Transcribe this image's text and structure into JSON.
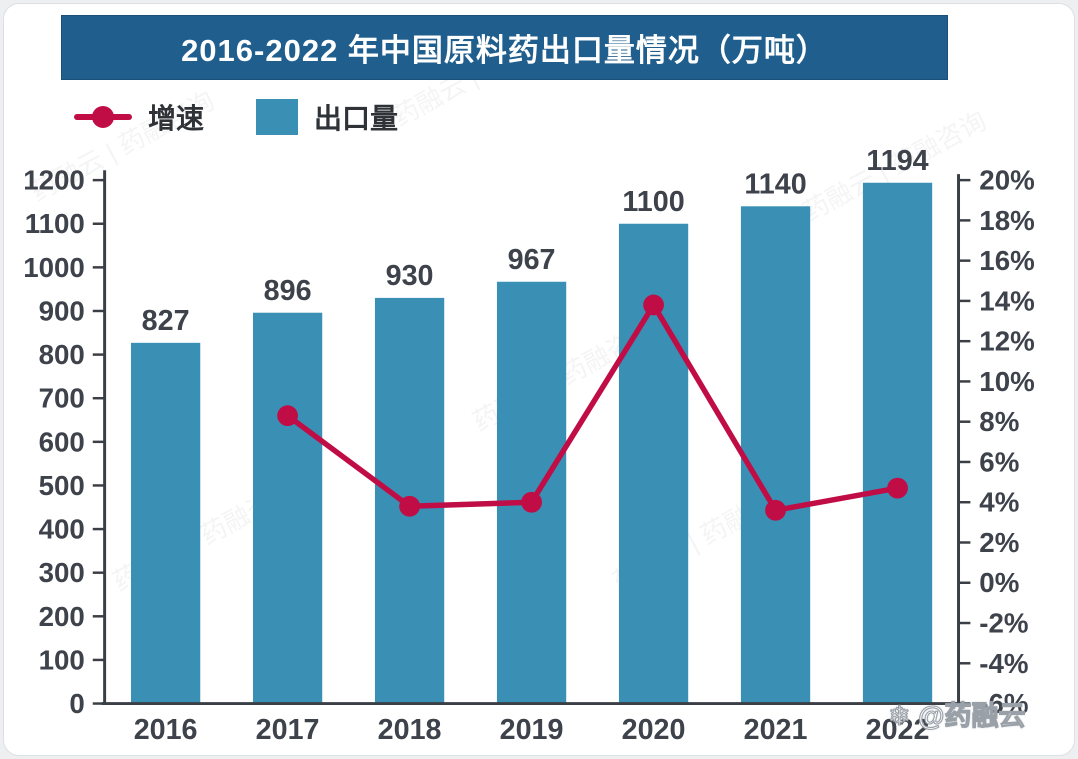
{
  "page": {
    "corner_watermark": {
      "icon": "❄",
      "text": "@药融云"
    },
    "diagonal_watermark": "药融云 | 药融咨询"
  },
  "title": {
    "text": "2016-2022 年中国原料药出口量情况（万吨）"
  },
  "legend": {
    "items": [
      {
        "label": "增速",
        "marker": "line-dot",
        "color": "#c00d45"
      },
      {
        "label": "出口量",
        "marker": "square",
        "color": "#3a8fb5"
      }
    ]
  },
  "chart_data": {
    "type": "combo-bar-line",
    "title": "2016-2022 年中国原料药出口量情况（万吨）",
    "unit": "万吨",
    "categories": [
      "2016",
      "2017",
      "2018",
      "2019",
      "2020",
      "2021",
      "2022"
    ],
    "series": [
      {
        "name": "出口量",
        "type": "bar",
        "axis": "left",
        "color": "#3a8fb5",
        "values": [
          827,
          896,
          930,
          967,
          1100,
          1140,
          1194
        ]
      },
      {
        "name": "增速",
        "type": "line",
        "axis": "right",
        "color": "#c00d45",
        "values": [
          null,
          8.3,
          3.8,
          4.0,
          13.8,
          3.6,
          4.7
        ]
      }
    ],
    "left_axis": {
      "min": 0,
      "max": 1200,
      "step": 100
    },
    "right_axis": {
      "min": -6,
      "max": 20,
      "step": 2,
      "suffix": "%"
    },
    "grid": false,
    "legend_position": "top-left",
    "bar_value_labels_shown": true
  }
}
